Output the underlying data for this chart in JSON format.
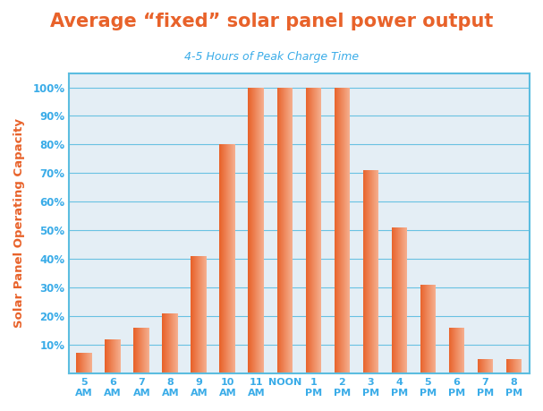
{
  "title": "Average “fixed” solar panel power output",
  "subtitle": "4-5 Hours of Peak Charge Time",
  "ylabel": "Solar Panel Operating Capacity",
  "categories": [
    "5\nAM",
    "6\nAM",
    "7\nAM",
    "8\nAM",
    "9\nAM",
    "10\nAM",
    "11\nAM",
    "NOON",
    "1\nPM",
    "2\nPM",
    "3\nPM",
    "4\nPM",
    "5\nPM",
    "6\nPM",
    "7\nPM",
    "8\nPM"
  ],
  "values": [
    7,
    12,
    16,
    21,
    41,
    80,
    100,
    100,
    100,
    100,
    71,
    51,
    31,
    16,
    5,
    5
  ],
  "bar_color_dark": "#E8622A",
  "bar_color_light": "#F5B090",
  "title_color": "#E8622A",
  "subtitle_color": "#3AACE8",
  "ylabel_color": "#E8622A",
  "tick_color": "#3AACE8",
  "grid_color": "#5BBDE0",
  "background_color": "#FFFFFF",
  "plot_bg_color": "#E4EEF5",
  "border_color": "#5BBDE0",
  "ylim": [
    0,
    105
  ],
  "yticks": [
    10,
    20,
    30,
    40,
    50,
    60,
    70,
    80,
    90,
    100
  ],
  "ytick_labels": [
    "10%",
    "20%",
    "30%",
    "40%",
    "50%",
    "60%",
    "70%",
    "80%",
    "90%",
    "100%"
  ]
}
